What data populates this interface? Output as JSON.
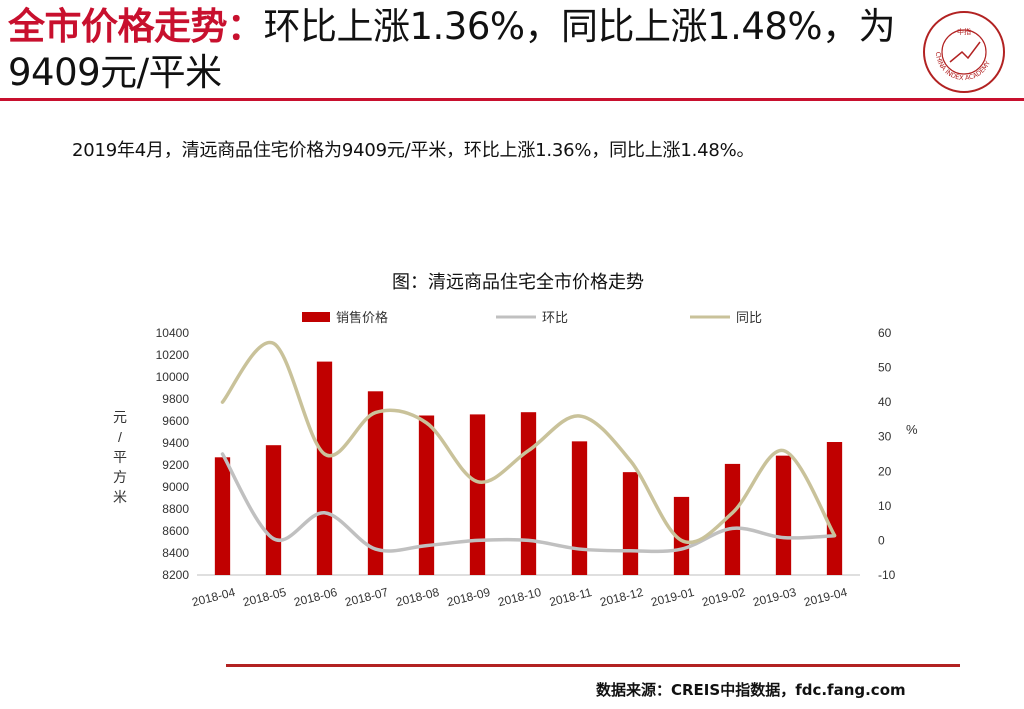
{
  "header": {
    "title_highlight": "全市价格走势：",
    "title_rest": "环比上涨1.36%，同比上涨1.48%，为9409元/平米",
    "logo_text": "CHINA INDEX ACADEMY",
    "logo_center": "中指"
  },
  "summary": "2019年4月，清远商品住宅价格为9409元/平米，环比上涨1.36%，同比上涨1.48%。",
  "source": "数据来源：CREIS中指数据，fdc.fang.com",
  "colors": {
    "accent": "#c8102e",
    "bar": "#c00000",
    "mom": "#c0c0c0",
    "yoy": "#c9c29a"
  },
  "chart_data": {
    "type": "bar",
    "title": "图：清远商品住宅全市价格走势",
    "ylabel": "元/平方米",
    "y2label": "%",
    "categories": [
      "2018-04",
      "2018-05",
      "2018-06",
      "2018-07",
      "2018-08",
      "2018-09",
      "2018-10",
      "2018-11",
      "2018-12",
      "2019-01",
      "2019-02",
      "2019-03",
      "2019-04"
    ],
    "ylim": [
      8200,
      10400
    ],
    "yticks": [
      8200,
      8400,
      8600,
      8800,
      9000,
      9200,
      9400,
      9600,
      9800,
      10000,
      10200,
      10400
    ],
    "y2lim": [
      -10,
      60
    ],
    "y2ticks": [
      -10,
      0,
      10,
      20,
      30,
      40,
      50,
      60
    ],
    "legend_position": "top",
    "grid": false,
    "series": [
      {
        "name": "销售价格",
        "type": "bar",
        "axis": "left",
        "values": [
          9270,
          9380,
          10140,
          9870,
          9650,
          9660,
          9680,
          9415,
          9135,
          8910,
          9210,
          9285,
          9409
        ]
      },
      {
        "name": "环比",
        "type": "line",
        "axis": "right",
        "values": [
          25,
          0.5,
          8,
          -2.5,
          -1.5,
          0,
          0,
          -2.5,
          -3,
          -2.5,
          3.5,
          0.8,
          1.36
        ]
      },
      {
        "name": "同比",
        "type": "line",
        "axis": "right",
        "values": [
          40,
          57,
          25,
          37,
          34,
          17,
          26,
          36,
          23,
          0,
          8,
          26,
          1.48
        ]
      }
    ]
  }
}
